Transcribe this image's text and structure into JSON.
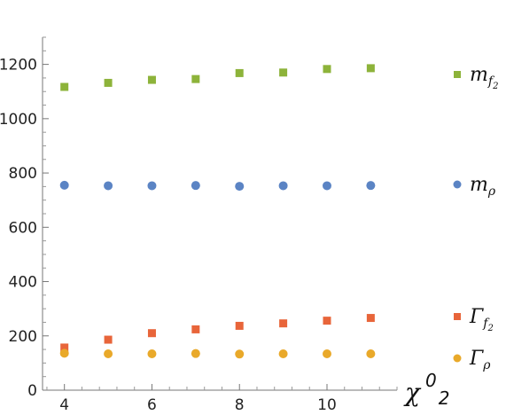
{
  "chart_data": {
    "type": "scatter",
    "title": "",
    "xlabel": {
      "base": "χ",
      "sup": "0",
      "sub": "2"
    },
    "ylabel": "",
    "xlim": [
      3.5,
      11.6
    ],
    "ylim": [
      0,
      1300
    ],
    "x": [
      4,
      5,
      6,
      7,
      8,
      9,
      10,
      11
    ],
    "x_ticks": [
      4,
      6,
      8,
      10
    ],
    "x_tick_labels": [
      "4",
      "6",
      "8",
      "10"
    ],
    "y_ticks": [
      0,
      200,
      400,
      600,
      800,
      1000,
      1200
    ],
    "y_tick_labels": [
      "0",
      "200",
      "400",
      "600",
      "800",
      "1000",
      "1200"
    ],
    "grid": false,
    "legend_placement": "right",
    "series": [
      {
        "key": "mf2",
        "legend": {
          "main": "m",
          "sub": "f",
          "subsub": "2"
        },
        "marker": "square",
        "color": "#8DB33A",
        "values": [
          1117,
          1132,
          1143,
          1146,
          1168,
          1170,
          1183,
          1186
        ]
      },
      {
        "key": "mrho",
        "legend": {
          "main": "m",
          "sub": "ρ",
          "subsub": ""
        },
        "marker": "circle",
        "color": "#5B84C4",
        "values": [
          755,
          753,
          753,
          754,
          751,
          753,
          753,
          754
        ]
      },
      {
        "key": "gf2",
        "legend": {
          "main": "Γ",
          "sub": "f",
          "subsub": "2"
        },
        "marker": "square",
        "color": "#E8653A",
        "values": [
          157,
          186,
          210,
          224,
          237,
          246,
          256,
          266
        ]
      },
      {
        "key": "grho",
        "legend": {
          "main": "Γ",
          "sub": "ρ",
          "subsub": ""
        },
        "marker": "circle",
        "color": "#E9A92A",
        "values": [
          136,
          134,
          134,
          135,
          133,
          134,
          134,
          134
        ]
      }
    ]
  }
}
